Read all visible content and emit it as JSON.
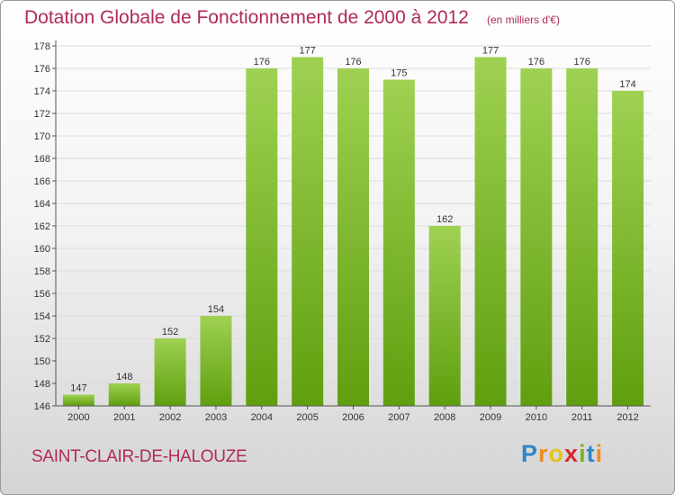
{
  "header": {
    "title": "Dotation Globale de Fonctionnement de 2000 à 2012",
    "unit": "(en milliers d'€)"
  },
  "commune": "SAINT-CLAIR-DE-HALOUZE",
  "logo": {
    "text": "Proxiti",
    "letters": [
      {
        "char": "P",
        "color": "#2f86c8"
      },
      {
        "char": "r",
        "color": "#f08a1e"
      },
      {
        "char": "o",
        "color": "#e8c21a"
      },
      {
        "char": "x",
        "color": "#d8262d"
      },
      {
        "char": "i",
        "color": "#7ab51d"
      },
      {
        "char": "t",
        "color": "#2f86c8"
      },
      {
        "char": "i",
        "color": "#f08a1e"
      }
    ]
  },
  "colors": {
    "bar_top": "#9fd152",
    "bar_bottom": "#5f9f0f",
    "text_accent": "#b1295a",
    "grid": "#dcdcdc"
  },
  "chart_data": {
    "type": "bar",
    "title": "Dotation Globale de Fonctionnement de 2000 à 2012",
    "subtitle": "(en milliers d'€)",
    "categories": [
      "2000",
      "2001",
      "2002",
      "2003",
      "2004",
      "2005",
      "2006",
      "2007",
      "2008",
      "2009",
      "2010",
      "2011",
      "2012"
    ],
    "values": [
      147,
      148,
      152,
      154,
      176,
      177,
      176,
      175,
      162,
      177,
      176,
      176,
      174
    ],
    "ylim": [
      146,
      178
    ],
    "yticks": [
      146,
      148,
      150,
      152,
      154,
      156,
      158,
      160,
      162,
      164,
      166,
      168,
      170,
      172,
      174,
      176,
      178
    ],
    "grid": true,
    "data_labels": true
  }
}
